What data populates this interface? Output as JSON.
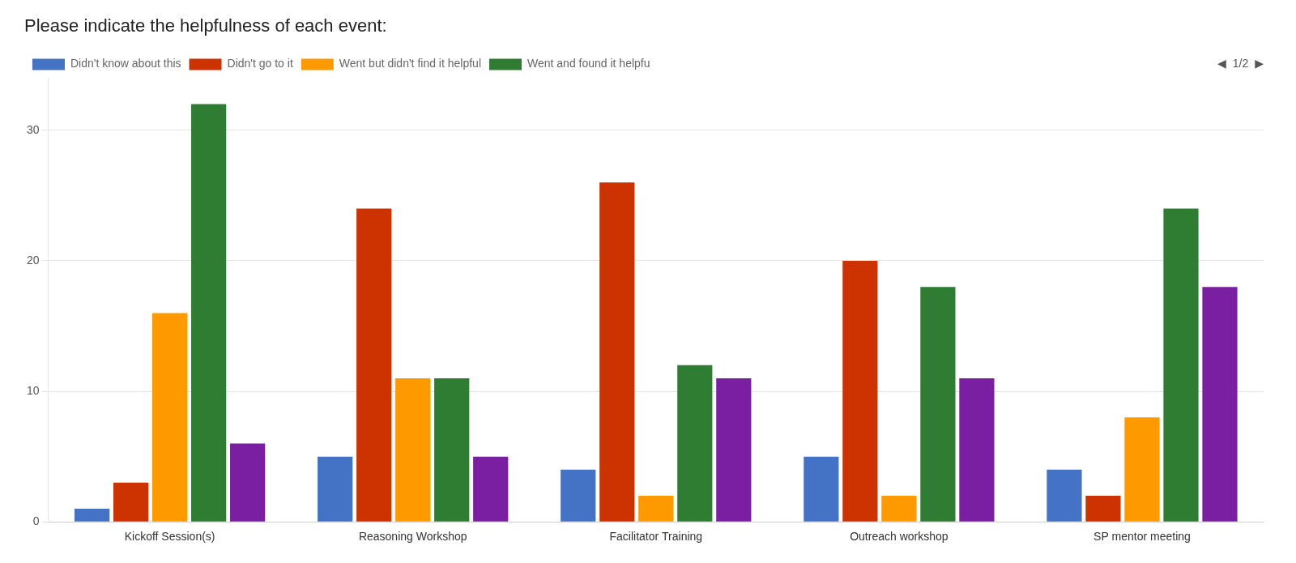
{
  "chart_data": {
    "type": "bar",
    "title": "Please indicate the helpfulness of each event:",
    "categories": [
      "Kickoff Session(s)",
      "Reasoning Workshop",
      "Facilitator Training",
      "Outreach workshop",
      "SP mentor meeting"
    ],
    "series": [
      {
        "name": "Didn't know about this",
        "color": "#4472c4",
        "values": [
          1,
          5,
          4,
          5,
          4
        ]
      },
      {
        "name": "Didn't go to it",
        "color": "#cc3300",
        "values": [
          3,
          24,
          26,
          20,
          2
        ]
      },
      {
        "name": "Went but didn't find it helpful",
        "color": "#ff9900",
        "values": [
          16,
          11,
          2,
          2,
          8
        ]
      },
      {
        "name": "Went and found it helpfu",
        "color": "#2e7d32",
        "values": [
          32,
          11,
          12,
          18,
          24
        ]
      },
      {
        "color": "#7b1fa2",
        "values": [
          6,
          5,
          11,
          11,
          18
        ]
      }
    ],
    "ylim": [
      0,
      34
    ],
    "yticks": [
      0,
      10,
      20,
      30
    ],
    "grid": true,
    "legend": "top",
    "annotations": [
      "◀",
      "1/2",
      "▶"
    ]
  }
}
